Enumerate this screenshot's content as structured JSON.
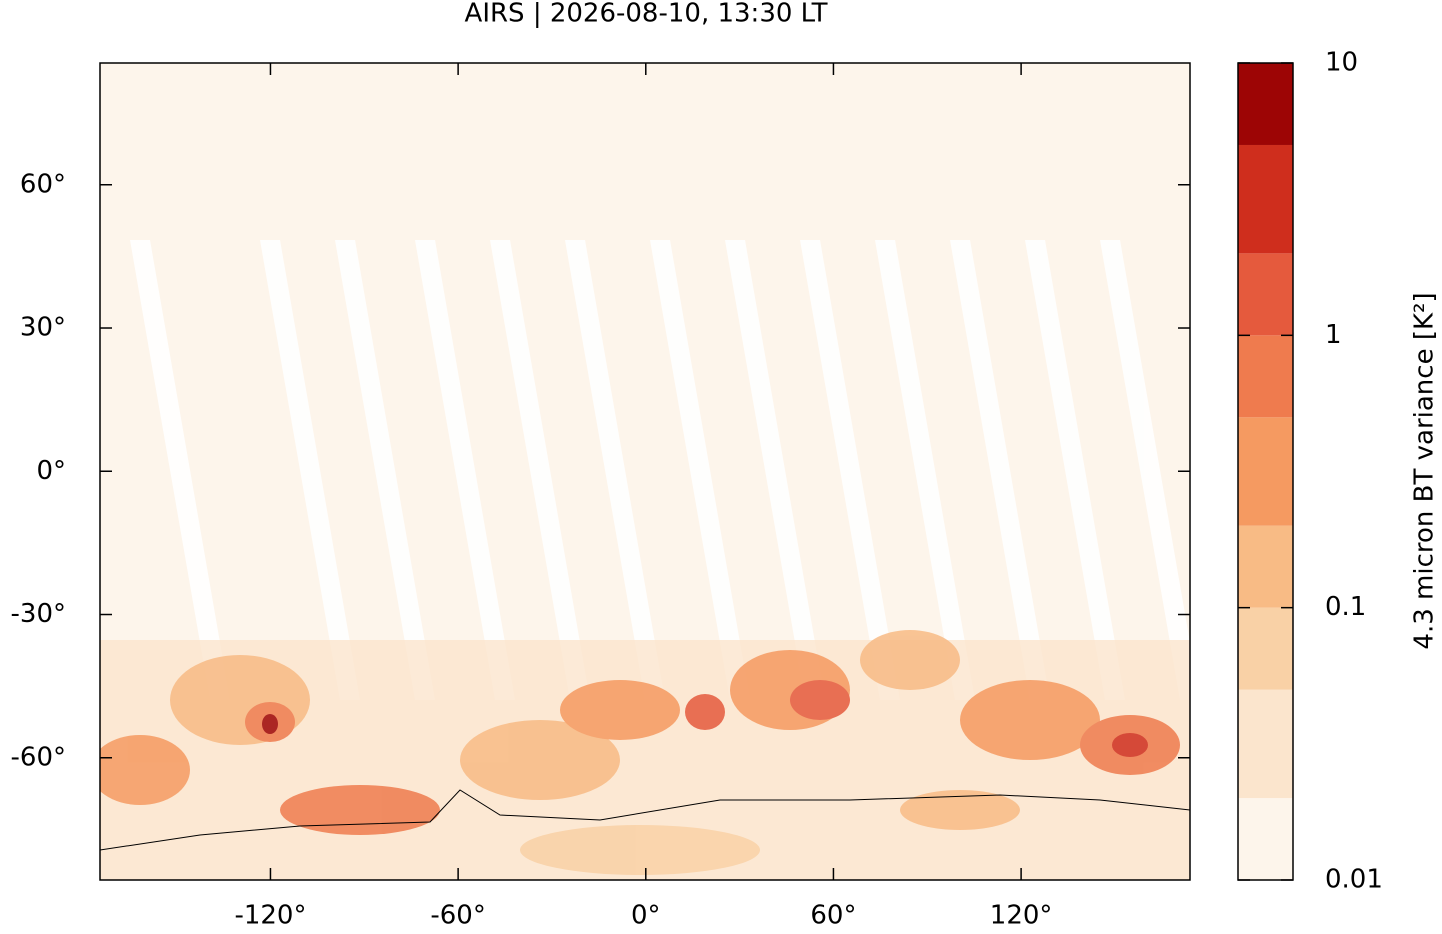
{
  "chart_data": {
    "type": "map",
    "title": "AIRS | 2026-08-10, 13:30 LT",
    "xlim": [
      -174.5,
      174
    ],
    "ylim": [
      -85.6,
      85.5
    ],
    "xticks": [
      {
        "value": -120,
        "label": "-120°"
      },
      {
        "value": -60,
        "label": "-60°"
      },
      {
        "value": 0,
        "label": "0°"
      },
      {
        "value": 60,
        "label": "60°"
      },
      {
        "value": 120,
        "label": "120°"
      }
    ],
    "yticks": [
      {
        "value": 60,
        "label": "60°"
      },
      {
        "value": 30,
        "label": "30°"
      },
      {
        "value": 0,
        "label": "0°"
      },
      {
        "value": -30,
        "label": "-30°"
      },
      {
        "value": -60,
        "label": "-60°"
      }
    ],
    "colorbar": {
      "label": "4.3 micron BT variance [K²]",
      "scale": "log",
      "lim": [
        0.01,
        10
      ],
      "ticks": [
        0.01,
        0.1,
        1,
        10
      ],
      "levels": [
        0.01,
        0.02,
        0.05,
        0.1,
        0.2,
        0.5,
        1,
        2,
        5,
        10
      ],
      "colors": [
        "#fdf5eb",
        "#fbe5cd",
        "#f9d1a6",
        "#f8bb85",
        "#f59a61",
        "#ef7b4e",
        "#e55a3d",
        "#cf2e1d",
        "#9d0505"
      ]
    }
  }
}
